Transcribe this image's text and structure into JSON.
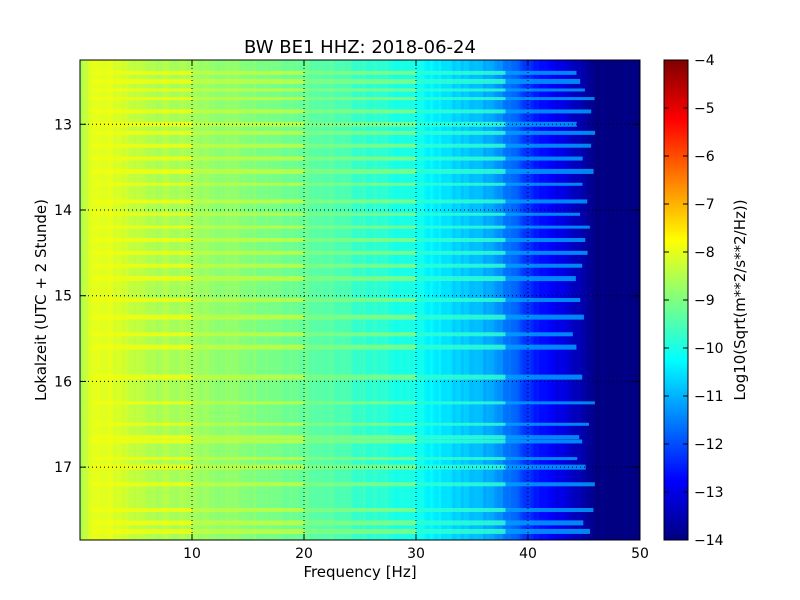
{
  "chart_data": {
    "type": "heatmap",
    "title": "BW BE1 HHZ: 2018-06-24",
    "xlabel": "Frequency [Hz]",
    "ylabel": "Lokalzeit (UTC + 2 Stunde)",
    "xlim": [
      0,
      50
    ],
    "ylim": [
      12.25,
      17.85
    ],
    "x_ticks": [
      10,
      20,
      30,
      40,
      50
    ],
    "y_ticks": [
      13,
      14,
      15,
      16,
      17
    ],
    "y_inverted": true,
    "grid": true,
    "colormap": "jet",
    "colorbar": {
      "label": "Log10(Sqrt(m**2/s**2/Hz))",
      "min": -14,
      "max": -4,
      "ticks": [
        -4,
        -5,
        -6,
        -7,
        -8,
        -9,
        -10,
        -11,
        -12,
        -13,
        -14
      ]
    },
    "spectral_profile": {
      "frequency_hz": [
        0,
        1,
        2,
        5,
        10,
        15,
        20,
        25,
        30,
        33,
        36,
        38,
        40,
        42,
        44,
        46,
        50
      ],
      "log10_amplitude": [
        -8.6,
        -8.0,
        -8.0,
        -8.4,
        -8.7,
        -8.9,
        -9.2,
        -9.7,
        -10.1,
        -10.6,
        -11.0,
        -11.5,
        -12.3,
        -12.8,
        -13.3,
        -14.0,
        -14.0
      ]
    },
    "bright_bands_hours": [
      12.4,
      12.5,
      12.6,
      12.7,
      12.85,
      13.0,
      13.1,
      13.25,
      13.4,
      13.55,
      13.7,
      13.9,
      14.05,
      14.2,
      14.35,
      14.5,
      14.65,
      14.8,
      15.05,
      15.25,
      15.45,
      15.6,
      15.95,
      16.25,
      16.5,
      16.65,
      16.7,
      16.9,
      17.0,
      17.2,
      17.5,
      17.65,
      17.75
    ]
  }
}
